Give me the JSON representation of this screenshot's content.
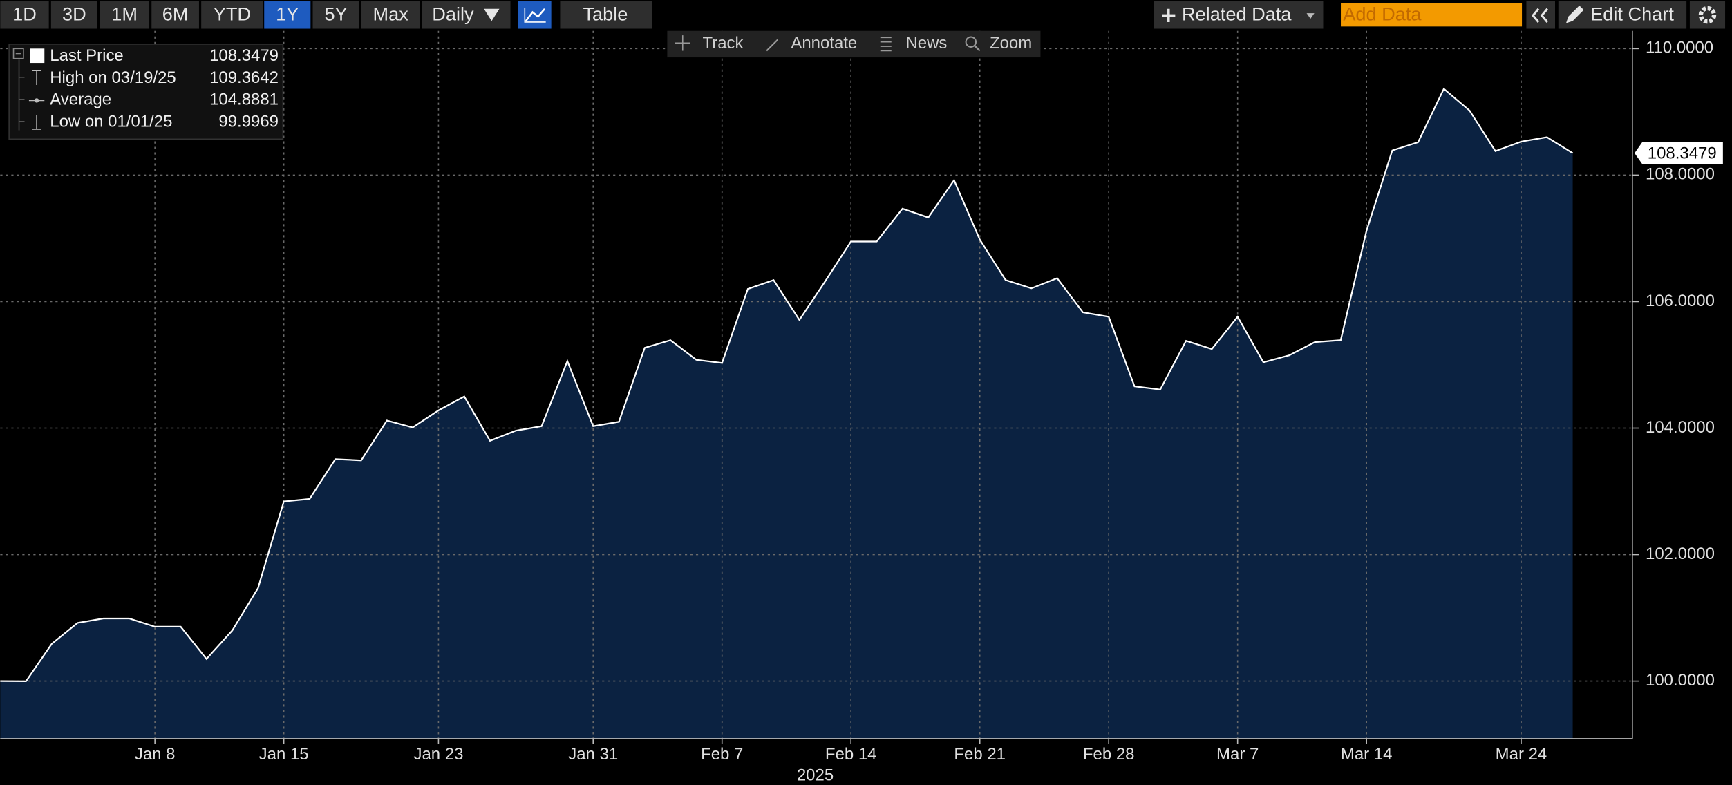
{
  "toolbar": {
    "ranges": [
      "1D",
      "3D",
      "1M",
      "6M",
      "YTD",
      "1Y",
      "5Y",
      "Max"
    ],
    "frequency": "Daily",
    "table": "Table",
    "related_data": "Related Data",
    "add_data": "Add Data",
    "edit_chart": "Edit Chart",
    "tools": [
      "Track",
      "Annotate",
      "News",
      "Zoom"
    ]
  },
  "legend": [
    {
      "label": "Last Price",
      "value": 108.3479
    },
    {
      "label": "High on 03/19/25",
      "value": 109.3642
    },
    {
      "label": "Average",
      "value": 104.8881
    },
    {
      "label": "Low on 01/01/25",
      "value": 99.9969
    }
  ],
  "chart_data": {
    "type": "area",
    "color": "#0b2241",
    "line_color": "#ffffff",
    "grid": true,
    "x_label": "2025",
    "categories": [
      null,
      null,
      null,
      null,
      null,
      null,
      "Jan 8",
      null,
      null,
      null,
      null,
      "Jan 15",
      null,
      null,
      null,
      null,
      null,
      "Jan 23",
      null,
      null,
      null,
      null,
      null,
      "Jan 31",
      null,
      null,
      null,
      null,
      "Feb 7",
      null,
      null,
      null,
      null,
      "Feb 14",
      null,
      null,
      null,
      null,
      "Feb 21",
      null,
      null,
      null,
      null,
      "Feb 28",
      null,
      null,
      null,
      null,
      "Mar 7",
      null,
      null,
      null,
      null,
      "Mar 14",
      null,
      null,
      null,
      null,
      null,
      "Mar 24",
      null,
      null
    ],
    "values": [
      100.0,
      99.9969,
      100.59,
      100.92,
      100.99,
      100.99,
      100.86,
      100.86,
      100.35,
      100.8,
      101.47,
      102.84,
      102.88,
      103.51,
      103.49,
      104.12,
      104.01,
      104.28,
      104.5,
      103.8,
      103.96,
      104.03,
      105.06,
      104.03,
      104.1,
      105.27,
      105.39,
      105.08,
      105.03,
      106.2,
      106.34,
      105.71,
      106.32,
      106.95,
      106.95,
      107.47,
      107.33,
      107.92,
      106.98,
      106.34,
      106.21,
      106.37,
      105.83,
      105.76,
      104.66,
      104.61,
      105.38,
      105.25,
      105.76,
      105.04,
      105.15,
      105.36,
      105.39,
      107.12,
      108.39,
      108.52,
      109.3642,
      109.02,
      108.38,
      108.53,
      108.6,
      108.3479
    ],
    "ylim": [
      99.09,
      110.28
    ],
    "yticks": [
      {
        "value": 100,
        "label": "100.0000"
      },
      {
        "value": 102,
        "label": "102.0000"
      },
      {
        "value": 104,
        "label": "104.0000"
      },
      {
        "value": 106,
        "label": "106.0000"
      },
      {
        "value": 108,
        "label": "108.0000"
      },
      {
        "value": 110,
        "label": "110.0000"
      }
    ]
  }
}
